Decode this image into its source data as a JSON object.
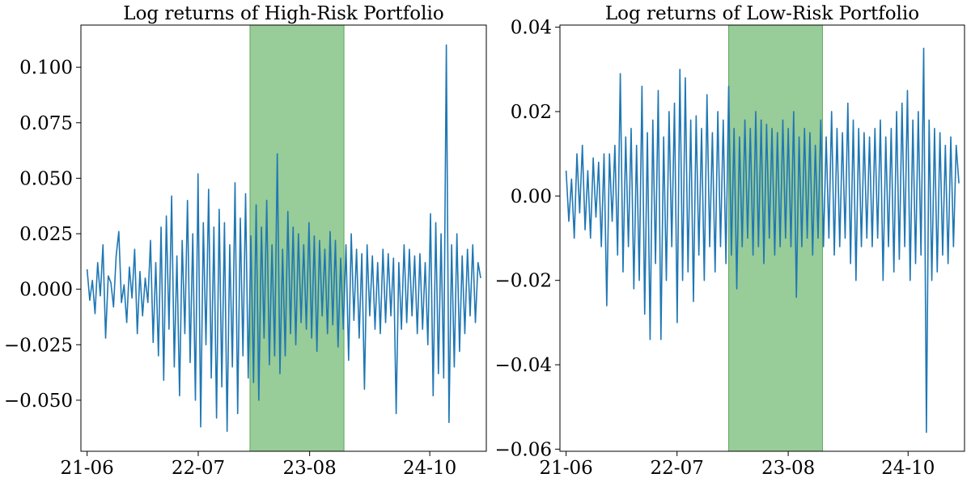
{
  "chart_data": [
    {
      "type": "line",
      "title": "Log returns of High-Risk Portfolio",
      "xlabel": "",
      "ylabel": "",
      "x_ticks": [
        "21-06",
        "22-07",
        "23-08",
        "24-10"
      ],
      "x_tick_months": [
        "2021-06",
        "2022-07",
        "2023-08",
        "2024-10"
      ],
      "x_range": [
        "2021-05-10",
        "2025-04-20"
      ],
      "y_ticks": [
        "0.100",
        "0.075",
        "0.050",
        "0.025",
        "0.000",
        "−0.025",
        "−0.050"
      ],
      "y_tick_values": [
        0.1,
        0.075,
        0.05,
        0.025,
        0.0,
        -0.025,
        -0.05
      ],
      "ylim": [
        -0.073,
        0.119
      ],
      "highlight_span": {
        "start": "2023-01-01",
        "end": "2023-12-01",
        "color": "#98cc98"
      },
      "series": [
        {
          "color": "#1f77b4",
          "start_date": "2021-06-01",
          "end_date": "2025-03-31",
          "values": [
            0.009,
            -0.005,
            0.004,
            -0.011,
            0.012,
            -0.003,
            0.02,
            -0.022,
            0.006,
            0.003,
            -0.008,
            0.015,
            0.026,
            -0.006,
            0.002,
            -0.015,
            0.01,
            -0.004,
            0.018,
            -0.02,
            0.008,
            -0.012,
            0.005,
            -0.006,
            0.022,
            -0.024,
            0.012,
            -0.03,
            0.028,
            -0.041,
            0.033,
            -0.018,
            0.042,
            -0.035,
            0.015,
            -0.048,
            0.022,
            -0.02,
            0.04,
            -0.033,
            0.025,
            -0.05,
            0.052,
            -0.062,
            0.03,
            -0.025,
            0.045,
            -0.04,
            0.028,
            -0.058,
            0.036,
            -0.044,
            0.03,
            -0.064,
            0.02,
            -0.035,
            0.048,
            -0.056,
            0.032,
            -0.03,
            0.043,
            -0.04,
            0.024,
            -0.042,
            0.038,
            -0.05,
            0.028,
            -0.022,
            0.04,
            -0.034,
            0.02,
            -0.03,
            0.061,
            -0.038,
            0.018,
            -0.03,
            0.035,
            -0.02,
            0.028,
            -0.025,
            0.025,
            -0.015,
            0.02,
            -0.018,
            0.03,
            -0.022,
            0.024,
            -0.028,
            0.022,
            -0.012,
            0.018,
            -0.02,
            0.026,
            -0.016,
            0.022,
            -0.026,
            0.014,
            -0.018,
            0.02,
            -0.032,
            0.025,
            -0.014,
            0.018,
            -0.022,
            0.016,
            -0.045,
            0.02,
            -0.012,
            0.015,
            -0.018,
            0.012,
            -0.02,
            0.018,
            -0.015,
            0.016,
            -0.012,
            0.014,
            -0.056,
            0.012,
            -0.018,
            0.02,
            -0.015,
            0.018,
            -0.012,
            0.015,
            -0.02,
            0.016,
            -0.018,
            0.012,
            -0.025,
            0.034,
            -0.048,
            0.03,
            -0.038,
            0.025,
            -0.04,
            0.11,
            -0.06,
            0.02,
            -0.035,
            0.025,
            -0.028,
            0.015,
            -0.02,
            0.018,
            -0.012,
            0.02,
            -0.015,
            0.012,
            0.005
          ]
        }
      ]
    },
    {
      "type": "line",
      "title": "Log returns of Low-Risk Portfolio",
      "xlabel": "",
      "ylabel": "",
      "x_ticks": [
        "21-06",
        "22-07",
        "23-08",
        "24-10"
      ],
      "x_tick_months": [
        "2021-06",
        "2022-07",
        "2023-08",
        "2024-10"
      ],
      "x_range": [
        "2021-05-10",
        "2025-04-20"
      ],
      "y_ticks": [
        "0.04",
        "0.02",
        "0.00",
        "−0.02",
        "−0.04",
        "−0.06"
      ],
      "y_tick_values": [
        0.04,
        0.02,
        0.0,
        -0.02,
        -0.04,
        -0.06
      ],
      "ylim": [
        -0.0605,
        0.0405
      ],
      "highlight_span": {
        "start": "2023-01-01",
        "end": "2023-12-01",
        "color": "#98cc98"
      },
      "series": [
        {
          "color": "#1f77b4",
          "start_date": "2021-06-01",
          "end_date": "2025-03-31",
          "values": [
            0.006,
            -0.006,
            0.004,
            -0.01,
            0.01,
            -0.004,
            0.012,
            -0.008,
            0.006,
            -0.01,
            0.009,
            -0.005,
            0.008,
            -0.012,
            0.01,
            -0.026,
            0.01,
            -0.006,
            0.012,
            -0.014,
            0.029,
            -0.018,
            0.014,
            -0.012,
            0.016,
            -0.022,
            0.012,
            -0.02,
            0.026,
            -0.028,
            0.015,
            -0.034,
            0.018,
            -0.016,
            0.025,
            -0.034,
            0.014,
            -0.02,
            0.02,
            -0.012,
            0.022,
            -0.03,
            0.03,
            -0.02,
            0.028,
            -0.018,
            0.018,
            -0.025,
            0.019,
            -0.014,
            0.016,
            -0.02,
            0.024,
            -0.012,
            0.015,
            -0.018,
            0.02,
            -0.012,
            0.018,
            -0.016,
            0.026,
            -0.014,
            0.016,
            -0.022,
            0.014,
            -0.012,
            0.018,
            -0.01,
            0.016,
            -0.014,
            0.02,
            -0.012,
            0.018,
            -0.016,
            0.017,
            -0.01,
            0.016,
            -0.014,
            0.015,
            -0.012,
            0.018,
            -0.01,
            0.016,
            -0.012,
            0.02,
            -0.024,
            0.014,
            -0.012,
            0.016,
            -0.01,
            0.015,
            -0.014,
            0.012,
            -0.01,
            0.018,
            -0.012,
            0.014,
            -0.01,
            0.02,
            -0.014,
            0.016,
            -0.012,
            0.015,
            -0.01,
            0.022,
            -0.016,
            0.018,
            -0.02,
            0.016,
            -0.012,
            0.015,
            -0.01,
            0.014,
            -0.012,
            0.016,
            -0.01,
            0.018,
            -0.02,
            0.014,
            -0.012,
            0.016,
            -0.018,
            0.02,
            -0.015,
            0.022,
            -0.012,
            0.025,
            -0.02,
            0.018,
            -0.016,
            0.02,
            -0.014,
            0.035,
            -0.056,
            0.018,
            -0.02,
            0.016,
            -0.018,
            0.015,
            -0.014,
            0.012,
            -0.016,
            0.014,
            -0.012,
            0.012,
            0.003
          ]
        }
      ]
    }
  ]
}
